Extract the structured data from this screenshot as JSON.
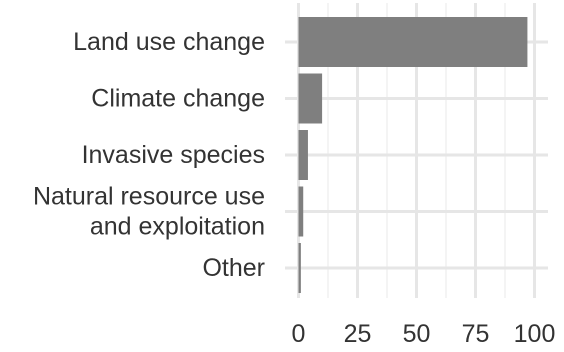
{
  "chart_data": {
    "type": "bar",
    "orientation": "horizontal",
    "categories": [
      [
        "Land use change"
      ],
      [
        "Climate change"
      ],
      [
        "Invasive species"
      ],
      [
        "Natural resource use",
        "and exploitation"
      ],
      [
        "Other"
      ]
    ],
    "values": [
      97,
      10,
      4,
      2,
      1
    ],
    "xlim": [
      0,
      100
    ],
    "x_ticks": [
      0,
      25,
      50,
      75,
      100
    ],
    "grid": true,
    "legend": "none",
    "bar_color": "#7f7f7f",
    "title": "",
    "xlabel": "",
    "ylabel": ""
  }
}
